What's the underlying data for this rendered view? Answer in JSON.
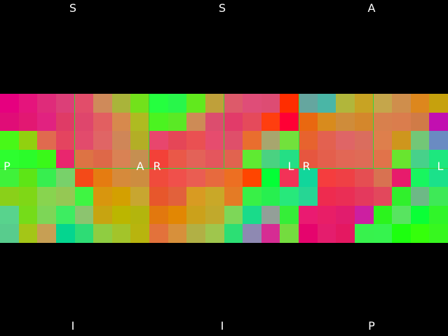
{
  "labels": {
    "top": [
      "S",
      "S",
      "A"
    ],
    "middle": [
      "P",
      "A",
      "R",
      "L",
      "R",
      "L"
    ],
    "bottom": [
      "I",
      "I",
      "P"
    ]
  },
  "mosaic": {
    "rows": 8,
    "cols": 24,
    "colors": [
      "#e6007f",
      "#e5147c",
      "#df2b7a",
      "#dc3f78",
      "#e24d6a",
      "#cf8a5a",
      "#a9b43a",
      "#72e11b",
      "#25ff3f",
      "#28f64a",
      "#61e91d",
      "#bfa03a",
      "#dd5a6a",
      "#df4d78",
      "#dd4c73",
      "#ff2d00",
      "#65a69f",
      "#4ab6a6",
      "#b1b63b",
      "#c8a323",
      "#c5a64b",
      "#cf8e4c",
      "#dd871d",
      "#c6a10d",
      "#e00d77",
      "#e21872",
      "#e12280",
      "#df3b66",
      "#df466c",
      "#e25f61",
      "#d7894d",
      "#aebb21",
      "#4bf320",
      "#5ae925",
      "#cd8b56",
      "#dc4d6e",
      "#e23b69",
      "#e54a5b",
      "#ff3e0f",
      "#ff0035",
      "#e96810",
      "#d88b1d",
      "#cf8c3a",
      "#d4872c",
      "#d8804d",
      "#da7d4d",
      "#d07b47",
      "#c20fb0",
      "#48f818",
      "#91d10f",
      "#e06a4f",
      "#e4445f",
      "#e24b6c",
      "#e06565",
      "#cf8658",
      "#b3ae26",
      "#e8466d",
      "#e54657",
      "#ea5052",
      "#e64c6e",
      "#df4f6a",
      "#e96e2e",
      "#a7a66e",
      "#72e13c",
      "#e7632e",
      "#e36150",
      "#df6566",
      "#da6d5e",
      "#de7f4c",
      "#ce961d",
      "#73c777",
      "#6a8bc2",
      "#2dfe2f",
      "#2bfc2a",
      "#3af819",
      "#e9266e",
      "#dd7344",
      "#de6848",
      "#d98254",
      "#c58f51",
      "#f34138",
      "#ea5848",
      "#e36258",
      "#e4565d",
      "#e1634f",
      "#5fea32",
      "#4ad281",
      "#24df85",
      "#e6563f",
      "#e45f4c",
      "#e26755",
      "#df6b56",
      "#e1734a",
      "#68e52f",
      "#47d18a",
      "#1de77e",
      "#3ff23a",
      "#5de516",
      "#37ee4f",
      "#78d16a",
      "#f44a18",
      "#e57c11",
      "#d68a3b",
      "#cd8d40",
      "#f04b3c",
      "#f0504b",
      "#ea5d52",
      "#e76a3e",
      "#ed6f22",
      "#ff4500",
      "#03ff36",
      "#f23257",
      "#11d69b",
      "#f53d3e",
      "#ef4045",
      "#e54e52",
      "#d87251",
      "#e71b6c",
      "#18f65f",
      "#1be18a",
      "#8ad019",
      "#7fd716",
      "#88d44f",
      "#95c854",
      "#3ff542",
      "#d8960e",
      "#d3a001",
      "#c8a630",
      "#e7572c",
      "#e2613b",
      "#d89b22",
      "#c9a828",
      "#e47b25",
      "#38f047",
      "#27ef4f",
      "#27e87b",
      "#26d694",
      "#ee2b4f",
      "#ea2e55",
      "#e4395d",
      "#e2485c",
      "#30f02c",
      "#6db986",
      "#3ee957",
      "#58d38d",
      "#75dc19",
      "#7dd657",
      "#3ded61",
      "#8cc46f",
      "#c7a411",
      "#bbb600",
      "#b3b50d",
      "#e2780e",
      "#e28703",
      "#cba11b",
      "#c1a92c",
      "#7dd758",
      "#19db8a",
      "#939f98",
      "#35ee38",
      "#ea1a71",
      "#e81e67",
      "#e11c6d",
      "#cc1fa1",
      "#2bf41d",
      "#58e460",
      "#0aff36",
      "#30f529",
      "#58cc8d",
      "#a4c617",
      "#c79f54",
      "#04d58f",
      "#2edc75",
      "#8fcd41",
      "#a3c42a",
      "#b8b40e",
      "#e3723b",
      "#d7903b",
      "#b1b045",
      "#9fc64d",
      "#2cdf74",
      "#8e89b2",
      "#d62c93",
      "#74dc3f",
      "#e5046d",
      "#e41d6d",
      "#e41861",
      "#37f24d",
      "#36f34e",
      "#1dff0f",
      "#35ff0b",
      "#37f71f"
    ]
  }
}
